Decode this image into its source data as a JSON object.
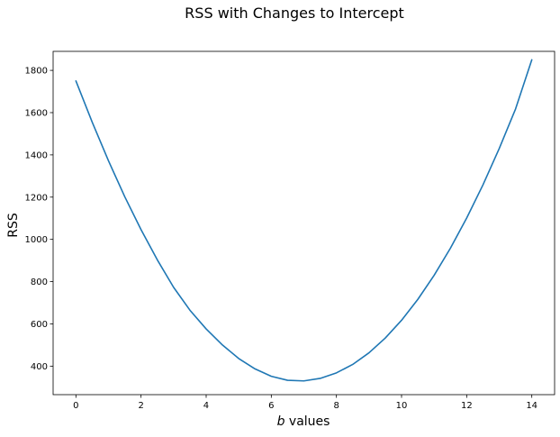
{
  "chart_data": {
    "type": "line",
    "title": "RSS with Changes to Intercept",
    "xlabel_var": "b",
    "xlabel_rest": " values",
    "ylabel": "RSS",
    "xlim": [
      -0.7,
      14.7
    ],
    "ylim": [
      265,
      1890
    ],
    "xticks": [
      0,
      2,
      4,
      6,
      8,
      10,
      12,
      14
    ],
    "yticks": [
      400,
      600,
      800,
      1000,
      1200,
      1400,
      1600,
      1800
    ],
    "grid": false,
    "series": [
      {
        "color": "#1f77b4",
        "x": [
          0,
          0.5,
          1,
          1.5,
          2,
          2.5,
          3,
          3.5,
          4,
          4.5,
          5,
          5.5,
          6,
          6.5,
          7,
          7.5,
          8,
          8.5,
          9,
          9.5,
          10,
          10.5,
          11,
          11.5,
          12,
          12.5,
          13,
          13.5,
          14
        ],
        "y": [
          1750,
          1555,
          1372,
          1202,
          1046,
          903,
          773,
          665,
          576,
          500,
          436,
          387,
          352,
          333,
          330,
          342,
          368,
          408,
          463,
          533,
          617,
          716,
          830,
          958,
          1101,
          1258,
          1430,
          1617,
          1850
        ]
      }
    ]
  }
}
